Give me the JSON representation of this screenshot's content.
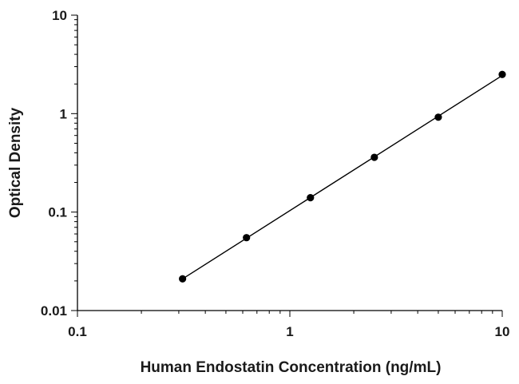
{
  "chart_data": {
    "type": "scatter",
    "xlabel": "Human Endostatin Concentration (ng/mL)",
    "ylabel": "Optical Density",
    "x_scale": "log",
    "y_scale": "log",
    "xlim": [
      0.1,
      10
    ],
    "ylim": [
      0.01,
      10
    ],
    "x_ticks": [
      "0.1",
      "1",
      "10"
    ],
    "y_ticks": [
      "0.01",
      "0.1",
      "1",
      "10"
    ],
    "grid": false,
    "series": [
      {
        "x": [
          0.3125,
          0.625,
          1.25,
          2.5,
          5,
          10
        ],
        "y": [
          0.021,
          0.055,
          0.14,
          0.36,
          0.92,
          2.5
        ]
      }
    ],
    "fit_line": true,
    "colors": {
      "marker": "#000000",
      "line": "#000000",
      "axis": "#000000"
    }
  }
}
